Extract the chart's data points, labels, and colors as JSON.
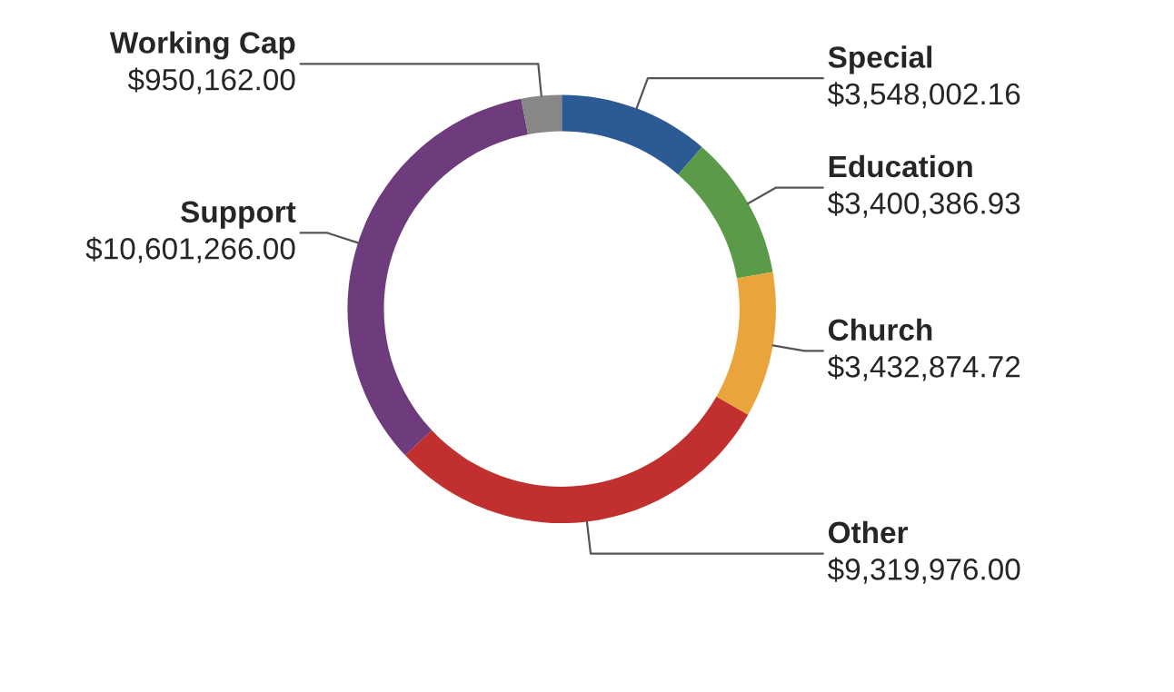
{
  "chart_data": {
    "type": "donut",
    "categories": [
      "Special",
      "Education",
      "Church",
      "Other",
      "Support",
      "Working Cap"
    ],
    "values": [
      3548002.16,
      3400386.93,
      3432874.72,
      9319976.0,
      10601266.0,
      950162.0
    ],
    "value_labels": [
      "$3,548,002.16",
      "$3,400,386.93",
      "$3,432,874.72",
      "$9,319,976.00",
      "$10,601,266.00",
      "$950,162.00"
    ],
    "colors": [
      "#2c5a94",
      "#5b9a48",
      "#e9a53b",
      "#c1302e",
      "#6e3c7c",
      "#878787"
    ],
    "legend": false
  }
}
